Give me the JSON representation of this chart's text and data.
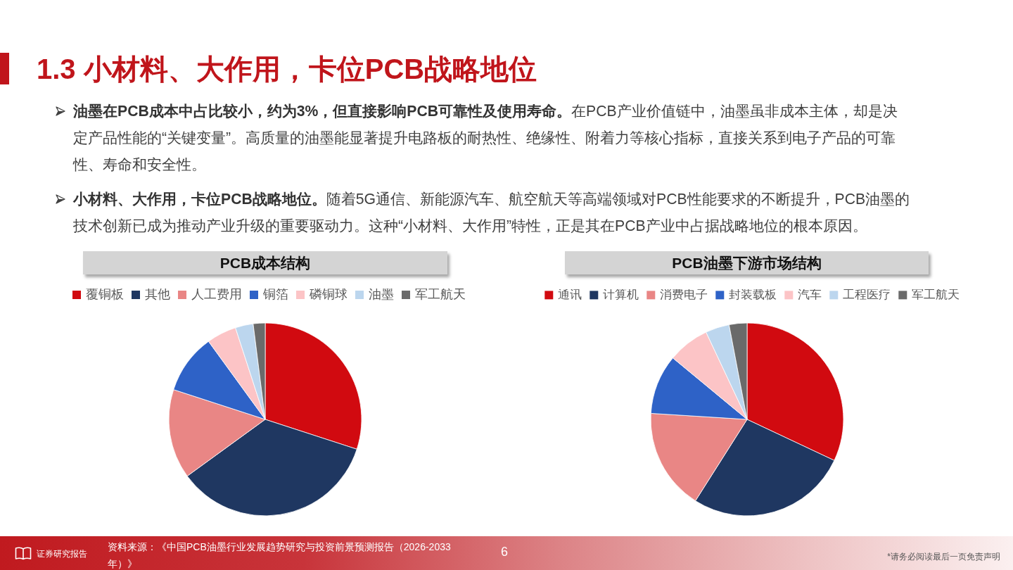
{
  "chart_data": [
    {
      "type": "other",
      "title": "1.3 小材料、大作用，卡位PCB战略地位",
      "annotations": [
        "油墨在PCB成本中占比较小，约为3%，但直接影响PCB可靠性及使用寿命。在PCB产业价值链中，油墨虽非成本主体，却是决定产品性能的“关键变量”。高质量的油墨能显著提升电路板的耐热性、绝缘性、附着力等核心指标，直接关系到电子产品的可靠性、寿命和安全性。",
        "小材料、大作用，卡位PCB战略地位。随着5G通信、新能源汽车、航空航天等高端领域对PCB性能要求的不断提升，PCB油墨的技术创新已成为推动产业升级的重要驱动力。这种“小材料、大作用”特性，正是其在PCB产业中占据战略地位的根本原因。"
      ]
    },
    {
      "type": "pie",
      "title": "PCB成本结构",
      "categories": [
        "覆铜板",
        "其他",
        "人工费用",
        "铜箔",
        "磷铜球",
        "油墨",
        "军工航天"
      ],
      "values": [
        30,
        35,
        15,
        10,
        5,
        3,
        2
      ],
      "colors": [
        "#d10a10",
        "#1f3761",
        "#e98685",
        "#2e62c7",
        "#fcc4c6",
        "#bcd6ee",
        "#6a6a6a"
      ],
      "legend": "top"
    },
    {
      "type": "pie",
      "title": "PCB油墨下游市场结构",
      "categories": [
        "通讯",
        "计算机",
        "消费电子",
        "封装载板",
        "汽车",
        "工程医疗",
        "军工航天"
      ],
      "values": [
        32,
        27,
        17,
        10,
        7,
        4,
        3
      ],
      "colors": [
        "#d10a10",
        "#1f3761",
        "#e98685",
        "#2e62c7",
        "#fcc4c6",
        "#bcd6ee",
        "#6a6a6a"
      ],
      "legend": "top"
    },
    {
      "type": "other",
      "annotations": [
        "证券研究报告",
        "资料来源：《中国PCB油墨行业发展趋势研究与投资前景预测报告（2026-2033年）》",
        "6",
        "*请务必阅读最后一页免责声明"
      ]
    }
  ]
}
